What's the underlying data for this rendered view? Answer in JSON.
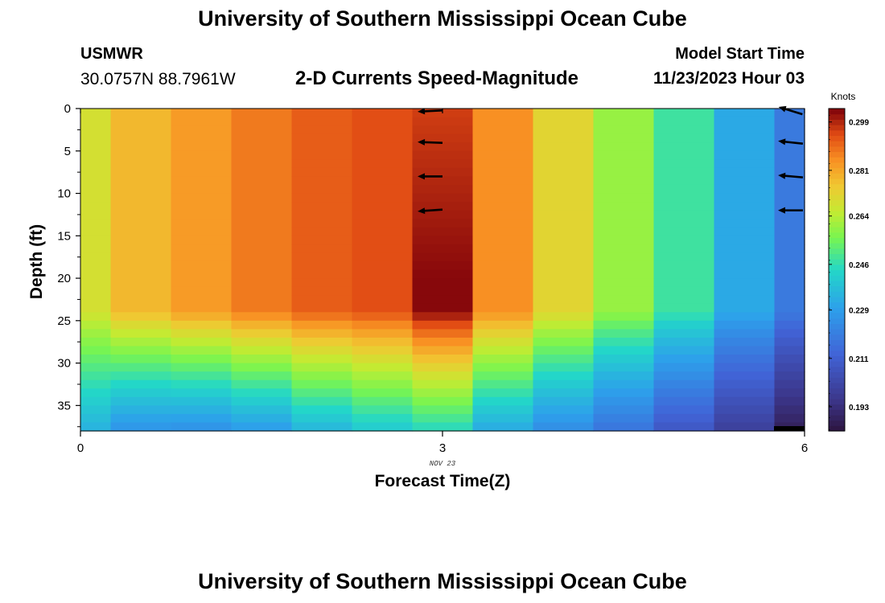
{
  "header": {
    "title": "University of Southern Mississippi Ocean Cube",
    "station": "USMWR",
    "coordinates": "30.0757N  88.7961W",
    "subtitle": "2-D Currents Speed-Magnitude",
    "model_start_label": "Model Start Time",
    "model_start_value": "11/23/2023 Hour 03"
  },
  "footer": {
    "title": "University of Southern Mississippi Ocean Cube"
  },
  "chart_data": {
    "type": "heatmap",
    "title": "2-D Currents Speed-Magnitude",
    "xlabel": "Forecast Time(Z)",
    "ylabel": "Depth (ft)",
    "x_ticks": [
      "0",
      "3",
      "6"
    ],
    "x_tick_values": [
      0,
      3,
      6
    ],
    "x_sublabel": "NOV 23",
    "xlim": [
      0,
      6
    ],
    "y_ticks": [
      "0",
      "5",
      "10",
      "15",
      "20",
      "25",
      "30",
      "35"
    ],
    "y_tick_values": [
      0,
      5,
      10,
      15,
      20,
      25,
      30,
      35
    ],
    "ylim": [
      0,
      38
    ],
    "y_inverted": true,
    "colorbar": {
      "unit": "Knots",
      "min": 0.184,
      "max": 0.304,
      "tick_labels": [
        "0.299",
        "0.281",
        "0.264",
        "0.246",
        "0.229",
        "0.211",
        "0.193"
      ],
      "tick_values": [
        0.299,
        0.281,
        0.264,
        0.246,
        0.229,
        0.211,
        0.193
      ]
    },
    "columns": [
      {
        "x": 0.0,
        "surface": 0.269,
        "bottom": 0.234
      },
      {
        "x": 0.5,
        "surface": 0.278,
        "bottom": 0.226
      },
      {
        "x": 1.0,
        "surface": 0.283,
        "bottom": 0.225
      },
      {
        "x": 1.5,
        "surface": 0.288,
        "bottom": 0.228
      },
      {
        "x": 2.0,
        "surface": 0.292,
        "bottom": 0.235
      },
      {
        "x": 2.5,
        "surface": 0.294,
        "bottom": 0.24
      },
      {
        "x": 3.0,
        "surface": 0.296,
        "max": 0.303,
        "bottom": 0.244
      },
      {
        "x": 3.5,
        "surface": 0.285,
        "bottom": 0.232
      },
      {
        "x": 4.0,
        "surface": 0.272,
        "bottom": 0.224
      },
      {
        "x": 4.5,
        "surface": 0.26,
        "bottom": 0.217
      },
      {
        "x": 5.0,
        "surface": 0.248,
        "bottom": 0.208
      },
      {
        "x": 5.5,
        "surface": 0.232,
        "bottom": 0.199
      },
      {
        "x": 6.0,
        "surface": 0.219,
        "bottom": 0.188
      }
    ],
    "vectors": [
      {
        "x": 3,
        "depth": 0,
        "dir_deg": 183
      },
      {
        "x": 3,
        "depth": 4,
        "dir_deg": 178
      },
      {
        "x": 3,
        "depth": 8,
        "dir_deg": 180
      },
      {
        "x": 3,
        "depth": 12,
        "dir_deg": 184
      },
      {
        "x": 6,
        "depth": 0,
        "dir_deg": 163
      },
      {
        "x": 6,
        "depth": 4,
        "dir_deg": 174
      },
      {
        "x": 6,
        "depth": 8,
        "dir_deg": 175
      },
      {
        "x": 6,
        "depth": 12,
        "dir_deg": 180
      }
    ]
  }
}
